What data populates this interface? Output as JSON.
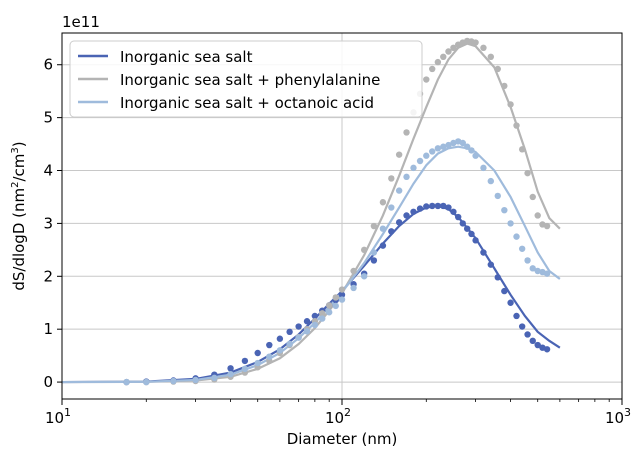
{
  "chart_data": {
    "type": "line",
    "xlabel": "Diameter (nm)",
    "ylabel_main": "dS/dlogD (nm",
    "ylabel_sup1": "2",
    "ylabel_mid": "/cm",
    "ylabel_sup2": "3",
    "ylabel_end": ")",
    "y_offset_label": "1e11",
    "x_scale": "log",
    "xlim": [
      10,
      1000
    ],
    "ylim": [
      -0.32,
      6.6
    ],
    "y_ticks": [
      0,
      1,
      2,
      3,
      4,
      5,
      6
    ],
    "y_tick_labels": [
      "0",
      "1",
      "2",
      "3",
      "4",
      "5",
      "6"
    ],
    "x_ticks": [
      10,
      100,
      1000
    ],
    "x_tick_bases": [
      "10",
      "10",
      "10"
    ],
    "x_tick_exps": [
      "1",
      "2",
      "3"
    ],
    "grid": true,
    "legend_position": "top-left",
    "series": [
      {
        "name": "Inorganic sea salt",
        "color": "#4a64b4",
        "fit_x": [
          10,
          20,
          30,
          40,
          50,
          60,
          70,
          80,
          90,
          100,
          120,
          140,
          160,
          180,
          200,
          220,
          240,
          260,
          300,
          350,
          400,
          450,
          500,
          550,
          600
        ],
        "fit_y": [
          0.0,
          0.01,
          0.06,
          0.18,
          0.38,
          0.62,
          0.9,
          1.2,
          1.48,
          1.72,
          2.2,
          2.62,
          2.95,
          3.18,
          3.3,
          3.33,
          3.27,
          3.12,
          2.72,
          2.15,
          1.65,
          1.25,
          0.95,
          0.78,
          0.65
        ],
        "pts_x": [
          17,
          20,
          25,
          30,
          35,
          40,
          45,
          50,
          55,
          60,
          65,
          70,
          75,
          80,
          85,
          90,
          95,
          100,
          110,
          120,
          130,
          140,
          150,
          160,
          170,
          180,
          190,
          200,
          210,
          220,
          230,
          240,
          250,
          260,
          270,
          280,
          290,
          300,
          320,
          340,
          360,
          380,
          400,
          420,
          440,
          460,
          480,
          500,
          520,
          540
        ],
        "pts_y": [
          0.0,
          0.01,
          0.03,
          0.07,
          0.14,
          0.26,
          0.4,
          0.55,
          0.7,
          0.82,
          0.95,
          1.05,
          1.15,
          1.25,
          1.35,
          1.45,
          1.55,
          1.65,
          1.85,
          2.05,
          2.3,
          2.58,
          2.85,
          3.02,
          3.15,
          3.22,
          3.28,
          3.32,
          3.33,
          3.33,
          3.33,
          3.3,
          3.22,
          3.12,
          3.0,
          2.9,
          2.8,
          2.68,
          2.45,
          2.22,
          1.98,
          1.72,
          1.5,
          1.25,
          1.05,
          0.9,
          0.78,
          0.7,
          0.65,
          0.62
        ]
      },
      {
        "name": "Inorganic sea salt + phenylalanine",
        "color": "#b4b4b4",
        "fit_x": [
          10,
          20,
          30,
          40,
          50,
          60,
          70,
          80,
          90,
          100,
          120,
          140,
          160,
          180,
          200,
          220,
          240,
          260,
          280,
          300,
          350,
          400,
          450,
          500,
          550,
          600
        ],
        "fit_y": [
          0.0,
          0.005,
          0.03,
          0.1,
          0.25,
          0.45,
          0.72,
          1.02,
          1.35,
          1.68,
          2.4,
          3.15,
          3.9,
          4.6,
          5.2,
          5.72,
          6.1,
          6.32,
          6.4,
          6.35,
          5.95,
          5.2,
          4.4,
          3.6,
          3.1,
          2.9
        ],
        "pts_x": [
          17,
          20,
          25,
          30,
          35,
          40,
          45,
          50,
          55,
          60,
          65,
          70,
          75,
          80,
          85,
          90,
          95,
          100,
          110,
          120,
          130,
          140,
          150,
          160,
          170,
          180,
          190,
          200,
          210,
          220,
          230,
          240,
          250,
          260,
          270,
          280,
          290,
          300,
          320,
          340,
          360,
          380,
          400,
          420,
          440,
          460,
          480,
          500,
          520,
          540
        ],
        "pts_y": [
          0.0,
          0.0,
          0.01,
          0.02,
          0.05,
          0.1,
          0.18,
          0.28,
          0.4,
          0.55,
          0.7,
          0.85,
          1.0,
          1.15,
          1.3,
          1.45,
          1.6,
          1.75,
          2.1,
          2.5,
          2.95,
          3.4,
          3.85,
          4.3,
          4.72,
          5.1,
          5.45,
          5.72,
          5.92,
          6.05,
          6.15,
          6.25,
          6.32,
          6.38,
          6.42,
          6.45,
          6.44,
          6.42,
          6.32,
          6.15,
          5.92,
          5.6,
          5.25,
          4.85,
          4.4,
          3.95,
          3.5,
          3.15,
          2.98,
          2.95
        ]
      },
      {
        "name": "Inorganic sea salt + octanoic acid",
        "color": "#9fbbdc",
        "fit_x": [
          10,
          20,
          30,
          40,
          50,
          60,
          70,
          80,
          90,
          100,
          120,
          140,
          160,
          180,
          200,
          220,
          240,
          260,
          280,
          300,
          350,
          400,
          450,
          500,
          550,
          600
        ],
        "fit_y": [
          0.0,
          0.005,
          0.04,
          0.14,
          0.32,
          0.55,
          0.83,
          1.12,
          1.42,
          1.7,
          2.25,
          2.8,
          3.3,
          3.75,
          4.1,
          4.32,
          4.42,
          4.45,
          4.42,
          4.35,
          4.0,
          3.5,
          2.95,
          2.45,
          2.1,
          1.95
        ],
        "pts_x": [
          17,
          20,
          25,
          30,
          35,
          40,
          45,
          50,
          55,
          60,
          65,
          70,
          75,
          80,
          85,
          90,
          95,
          100,
          110,
          120,
          130,
          140,
          150,
          160,
          170,
          180,
          190,
          200,
          210,
          220,
          230,
          240,
          250,
          260,
          270,
          280,
          290,
          300,
          320,
          340,
          360,
          380,
          400,
          420,
          440,
          460,
          480,
          500,
          520,
          540
        ],
        "pts_y": [
          0.0,
          0.0,
          0.02,
          0.04,
          0.08,
          0.15,
          0.25,
          0.36,
          0.48,
          0.6,
          0.72,
          0.84,
          0.96,
          1.08,
          1.2,
          1.32,
          1.44,
          1.56,
          1.78,
          2.0,
          2.45,
          2.9,
          3.3,
          3.62,
          3.88,
          4.05,
          4.18,
          4.28,
          4.36,
          4.42,
          4.45,
          4.48,
          4.52,
          4.55,
          4.52,
          4.45,
          4.38,
          4.28,
          4.05,
          3.8,
          3.52,
          3.25,
          3.0,
          2.75,
          2.52,
          2.3,
          2.15,
          2.1,
          2.08,
          2.05
        ]
      }
    ]
  }
}
